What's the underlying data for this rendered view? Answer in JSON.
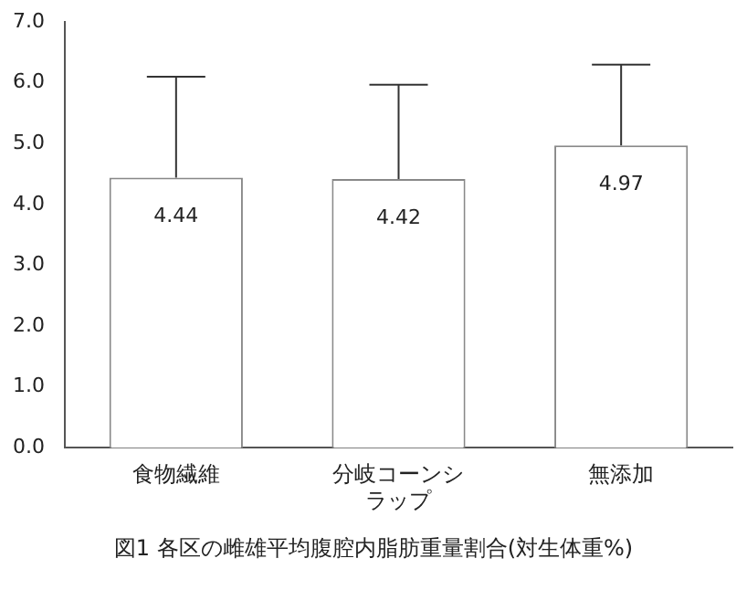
{
  "chart_data": {
    "type": "bar",
    "categories": [
      "食物繊維",
      "分岐コーンシラップ",
      "無添加"
    ],
    "values": [
      4.44,
      4.42,
      4.97
    ],
    "value_labels": [
      "4.44",
      "4.42",
      "4.97"
    ],
    "errors": [
      [
        4.44,
        6.1
      ],
      [
        4.42,
        5.97
      ],
      [
        4.97,
        6.3
      ]
    ],
    "color": "#ffffff",
    "ylim": [
      0,
      7
    ],
    "yticks": [
      {
        "value": 0,
        "label": "0.0"
      },
      {
        "value": 1,
        "label": "1.0"
      },
      {
        "value": 2,
        "label": "2.0"
      },
      {
        "value": 3,
        "label": "3.0"
      },
      {
        "value": 4,
        "label": "4.0"
      },
      {
        "value": 5,
        "label": "5.0"
      },
      {
        "value": 6,
        "label": "6.0"
      },
      {
        "value": 7,
        "label": "7.0"
      }
    ],
    "grid": false,
    "legend": false,
    "annotations": [
      "図1 各区の雌雄平均腹腔内脂肪重量割合(対生体重%)"
    ]
  }
}
